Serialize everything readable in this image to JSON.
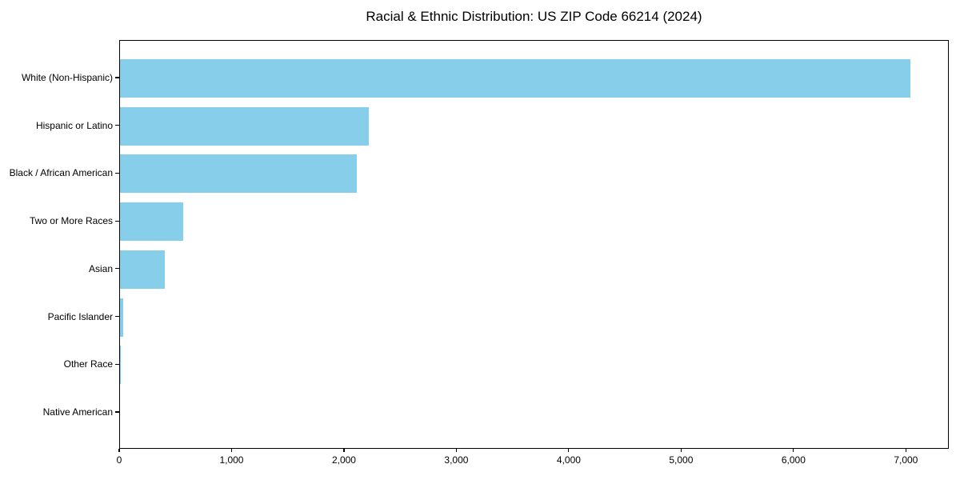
{
  "chart_data": {
    "type": "bar",
    "orientation": "horizontal",
    "title": "Racial & Ethnic Distribution: US ZIP Code 66214 (2024)",
    "categories": [
      "White (Non-Hispanic)",
      "Hispanic or Latino",
      "Black / African American",
      "Two or More Races",
      "Asian",
      "Pacific Islander",
      "Other Race",
      "Native American"
    ],
    "values": [
      7030,
      2210,
      2110,
      560,
      400,
      25,
      8,
      0
    ],
    "xlabel": "",
    "ylabel": "",
    "xlim": [
      0,
      7382
    ],
    "xticks": [
      0,
      1000,
      2000,
      3000,
      4000,
      5000,
      6000,
      7000
    ],
    "xtick_labels": [
      "0",
      "1,000",
      "2,000",
      "3,000",
      "4,000",
      "5,000",
      "6,000",
      "7,000"
    ],
    "bar_color": "#87CEEB",
    "axis_color": "#000000",
    "background_color": "#ffffff",
    "grid": false,
    "legend": null
  }
}
